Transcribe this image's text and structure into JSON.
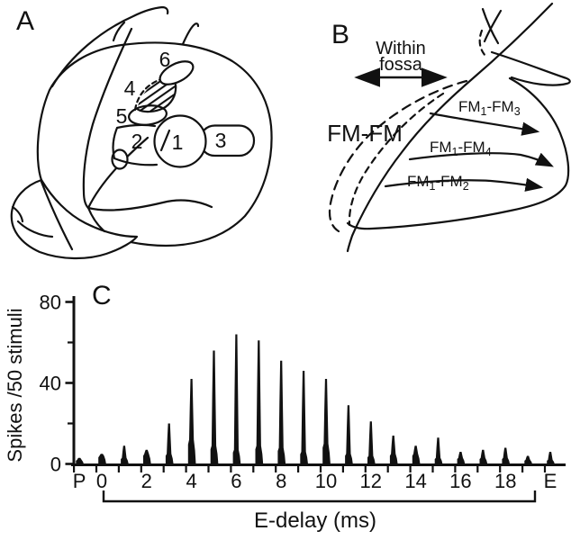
{
  "figure": {
    "bg": "#ffffff",
    "ink": "#111111"
  },
  "panel_a": {
    "label": "A",
    "region_labels": [
      "1",
      "2",
      "3",
      "4",
      "5",
      "6"
    ]
  },
  "panel_b": {
    "label": "B",
    "within_line1": "Within",
    "within_line2": "fossa",
    "fm_fm": "FM-FM",
    "fm_arrows": [
      {
        "m1": "FM",
        "s1": "1",
        "m2": "-FM",
        "s2": "3"
      },
      {
        "m1": "FM",
        "s1": "1",
        "m2": "-FM",
        "s2": "4"
      },
      {
        "m1": "FM",
        "s1": "1",
        "m2": "-FM",
        "s2": "2"
      }
    ]
  },
  "chart_data": {
    "type": "bar",
    "panel_label": "C",
    "title": "",
    "xlabel": "E-delay (ms)",
    "ylabel": "Spikes /50 stimuli",
    "ylim": [
      0,
      80
    ],
    "yticks": [
      0,
      40,
      80
    ],
    "yticks_minor": [
      20,
      60
    ],
    "grid": false,
    "legend": false,
    "x_bracket_range": [
      "0",
      "19"
    ],
    "labeled_ticks": [
      "P",
      "0",
      "2",
      "4",
      "6",
      "8",
      "10",
      "12",
      "14",
      "16",
      "18",
      "E"
    ],
    "points": [
      {
        "x": "P",
        "spikes": 3,
        "pedestal": 2
      },
      {
        "x": "0",
        "spikes": 5,
        "pedestal": 4
      },
      {
        "x": "1",
        "spikes": 9,
        "pedestal": 3
      },
      {
        "x": "2",
        "spikes": 7,
        "pedestal": 5
      },
      {
        "x": "3",
        "spikes": 20,
        "pedestal": 5
      },
      {
        "x": "4",
        "spikes": 42,
        "pedestal": 12
      },
      {
        "x": "5",
        "spikes": 56,
        "pedestal": 9
      },
      {
        "x": "6",
        "spikes": 64,
        "pedestal": 7
      },
      {
        "x": "7",
        "spikes": 61,
        "pedestal": 9
      },
      {
        "x": "8",
        "spikes": 51,
        "pedestal": 8
      },
      {
        "x": "9",
        "spikes": 46,
        "pedestal": 6
      },
      {
        "x": "10",
        "spikes": 42,
        "pedestal": 10
      },
      {
        "x": "11",
        "spikes": 29,
        "pedestal": 5
      },
      {
        "x": "12",
        "spikes": 21,
        "pedestal": 4
      },
      {
        "x": "13",
        "spikes": 14,
        "pedestal": 5
      },
      {
        "x": "14",
        "spikes": 9,
        "pedestal": 5
      },
      {
        "x": "15",
        "spikes": 13,
        "pedestal": 3
      },
      {
        "x": "16",
        "spikes": 6,
        "pedestal": 3
      },
      {
        "x": "17",
        "spikes": 7,
        "pedestal": 3
      },
      {
        "x": "18",
        "spikes": 8,
        "pedestal": 3
      },
      {
        "x": "19",
        "spikes": 4,
        "pedestal": 2
      },
      {
        "x": "E",
        "spikes": 6,
        "pedestal": 2
      }
    ]
  }
}
